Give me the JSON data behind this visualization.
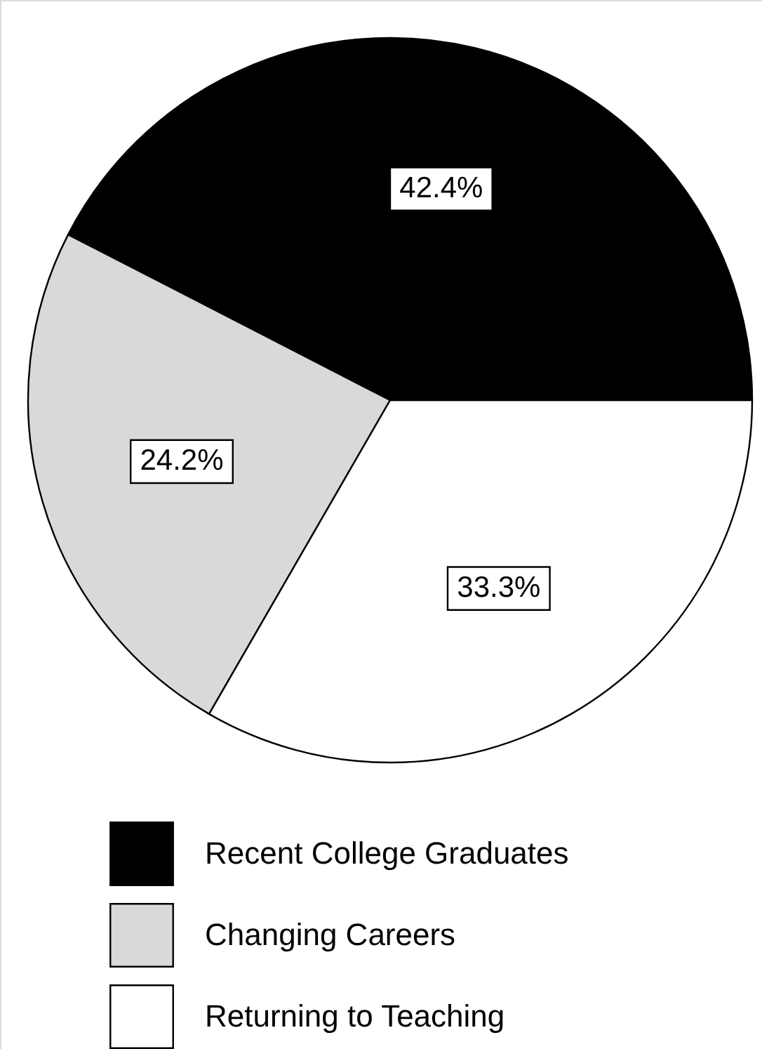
{
  "chart_data": {
    "type": "pie",
    "categories": [
      "Recent College Graduates",
      "Changing Careers",
      "Returning to Teaching"
    ],
    "values": [
      42.4,
      24.2,
      33.3
    ],
    "colors": [
      "#000000",
      "#d9d9d9",
      "#ffffff"
    ],
    "value_labels": [
      "42.4%",
      "24.2%",
      "33.3%"
    ],
    "legend": "bottom"
  }
}
